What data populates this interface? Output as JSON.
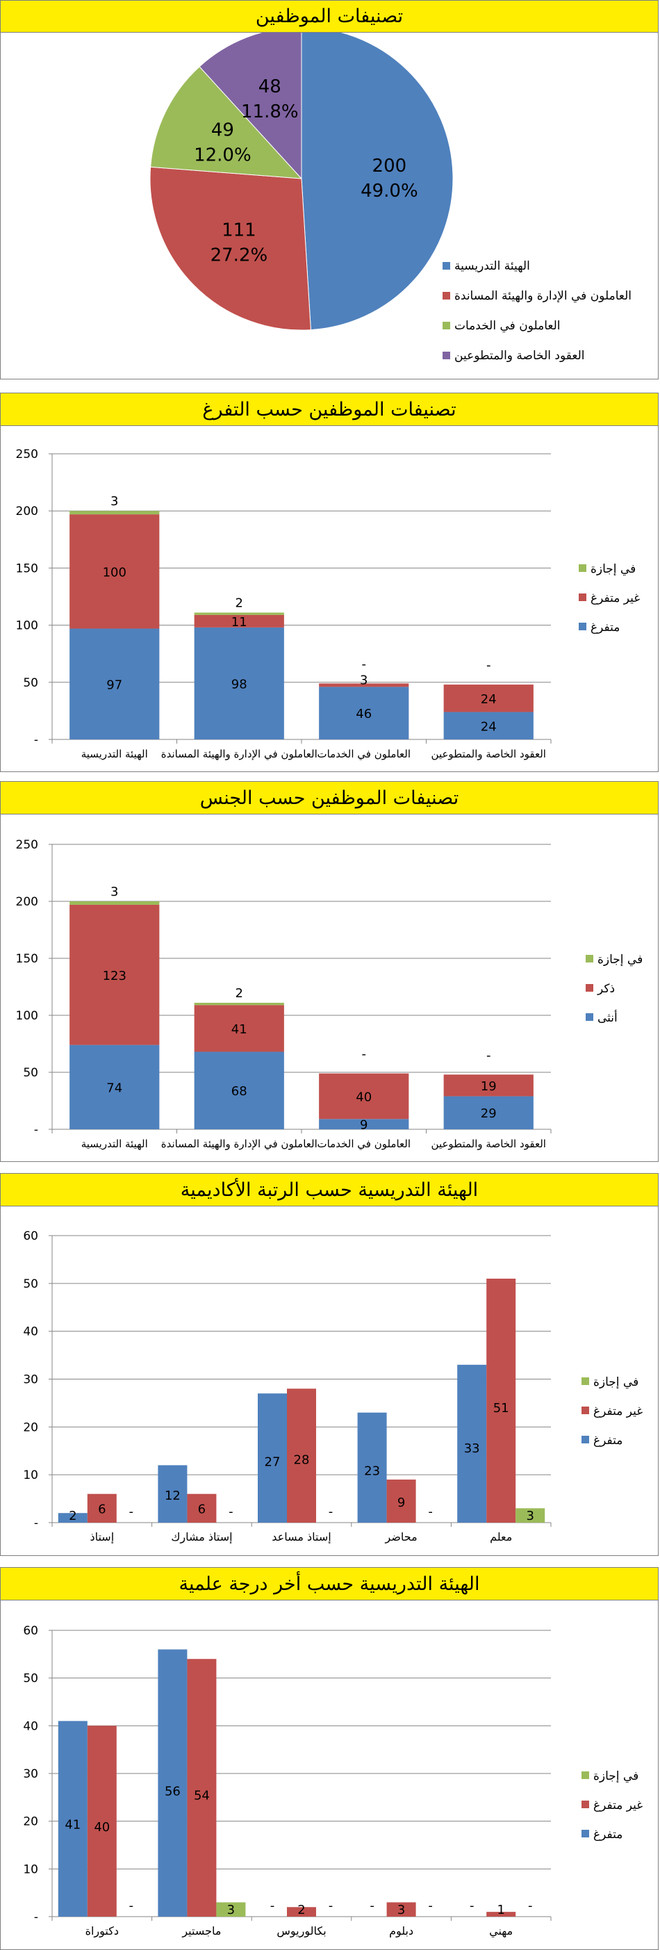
{
  "colors": {
    "blue": "#4f81bd",
    "red": "#c0504d",
    "green": "#9bbb59",
    "purple": "#8064a2",
    "grid": "#868686",
    "title_bg": "#ffee00"
  },
  "charts": [
    {
      "id": "pie",
      "chart_data": {
        "type": "pie",
        "title": "تصنيفات الموظفين",
        "labels": [
          "الهيئة التدريسية",
          "العاملون في الإدارة والهيئة المساندة",
          "العاملون في الخدمات",
          "العقود الخاصة والمتطوعين"
        ],
        "values": [
          200,
          111,
          49,
          48
        ],
        "percent_labels": [
          "49.0%",
          "27.2%",
          "12.0%",
          "11.8%"
        ],
        "value_labels": [
          "200",
          "111",
          "49",
          "48"
        ],
        "colors": [
          "#4f81bd",
          "#c0504d",
          "#9bbb59",
          "#8064a2"
        ],
        "legend": "right"
      }
    },
    {
      "id": "bar1",
      "chart_data": {
        "type": "bar",
        "stacked": true,
        "title": "تصنيفات الموظفين حسب التفرغ",
        "categories": [
          "الهيئة التدريسية",
          "العاملون في الإدارة والهيئة المساندة",
          "العاملون في الخدمات",
          "العقود الخاصة والمتطوعين"
        ],
        "series": [
          {
            "name": "متفرغ",
            "color": "#4f81bd",
            "values": [
              97,
              98,
              46,
              24
            ],
            "labels": [
              "97",
              "98",
              "46",
              "24"
            ]
          },
          {
            "name": "غير متفرغ",
            "color": "#c0504d",
            "values": [
              100,
              11,
              3,
              24
            ],
            "labels": [
              "100",
              "11",
              "3",
              "24"
            ]
          },
          {
            "name": "في إجازة",
            "color": "#9bbb59",
            "values": [
              3,
              2,
              0,
              0
            ],
            "labels": [
              "3",
              "2",
              "-",
              "-"
            ]
          }
        ],
        "ylim": [
          0,
          250
        ],
        "yticks": [
          "-",
          "50",
          "100",
          "150",
          "200",
          "250"
        ],
        "legend": "right",
        "grid": true
      }
    },
    {
      "id": "bar2",
      "chart_data": {
        "type": "bar",
        "stacked": true,
        "title": "تصنيفات الموظفين حسب الجنس",
        "categories": [
          "الهيئة التدريسية",
          "العاملون في الإدارة والهيئة المساندة",
          "العاملون في الخدمات",
          "العقود الخاصة والمتطوعين"
        ],
        "series": [
          {
            "name": "أنثى",
            "color": "#4f81bd",
            "values": [
              74,
              68,
              9,
              29
            ],
            "labels": [
              "74",
              "68",
              "9",
              "29"
            ]
          },
          {
            "name": "ذكر",
            "color": "#c0504d",
            "values": [
              123,
              41,
              40,
              19
            ],
            "labels": [
              "123",
              "41",
              "40",
              "19"
            ]
          },
          {
            "name": "في إجازة",
            "color": "#9bbb59",
            "values": [
              3,
              2,
              0,
              0
            ],
            "labels": [
              "3",
              "2",
              "-",
              "-"
            ]
          }
        ],
        "ylim": [
          0,
          250
        ],
        "yticks": [
          "-",
          "50",
          "100",
          "150",
          "200",
          "250"
        ],
        "legend": "right",
        "grid": true
      }
    },
    {
      "id": "bar3",
      "chart_data": {
        "type": "bar",
        "stacked": false,
        "title": "الهيئة التدريسية حسب الرتبة الأكاديمية",
        "categories": [
          "إستاذ",
          "إستاذ مشارك",
          "إستاذ مساعد",
          "محاضر",
          "معلم"
        ],
        "series": [
          {
            "name": "متفرغ",
            "color": "#4f81bd",
            "values": [
              2,
              12,
              27,
              23,
              33
            ],
            "labels": [
              "2",
              "12",
              "27",
              "23",
              "33"
            ]
          },
          {
            "name": "غير متفرغ",
            "color": "#c0504d",
            "values": [
              6,
              6,
              28,
              9,
              51
            ],
            "labels": [
              "6",
              "6",
              "28",
              "9",
              "51"
            ]
          },
          {
            "name": "في إجازة",
            "color": "#9bbb59",
            "values": [
              0,
              0,
              0,
              0,
              3
            ],
            "labels": [
              "-",
              "-",
              "-",
              "-",
              "3"
            ]
          }
        ],
        "ylim": [
          0,
          60
        ],
        "yticks": [
          "-",
          "10",
          "20",
          "30",
          "40",
          "50",
          "60"
        ],
        "legend": "right",
        "grid": true
      }
    },
    {
      "id": "bar4",
      "chart_data": {
        "type": "bar",
        "stacked": false,
        "title": "الهيئة التدريسية حسب أخر درجة علمية",
        "categories": [
          "دكتوراة",
          "ماجستير",
          "بكالوريوس",
          "دبلوم",
          "مهني"
        ],
        "series": [
          {
            "name": "متفرغ",
            "color": "#4f81bd",
            "values": [
              41,
              56,
              0,
              0,
              0
            ],
            "labels": [
              "41",
              "56",
              "-",
              "-",
              "-"
            ]
          },
          {
            "name": "غير متفرغ",
            "color": "#c0504d",
            "values": [
              40,
              54,
              2,
              3,
              1
            ],
            "labels": [
              "40",
              "54",
              "2",
              "3",
              "1"
            ]
          },
          {
            "name": "في إجازة",
            "color": "#9bbb59",
            "values": [
              0,
              3,
              0,
              0,
              0
            ],
            "labels": [
              "-",
              "3",
              "-",
              "-",
              "-"
            ]
          }
        ],
        "ylim": [
          0,
          60
        ],
        "yticks": [
          "-",
          "10",
          "20",
          "30",
          "40",
          "50",
          "60"
        ],
        "legend": "right",
        "grid": true
      }
    }
  ]
}
